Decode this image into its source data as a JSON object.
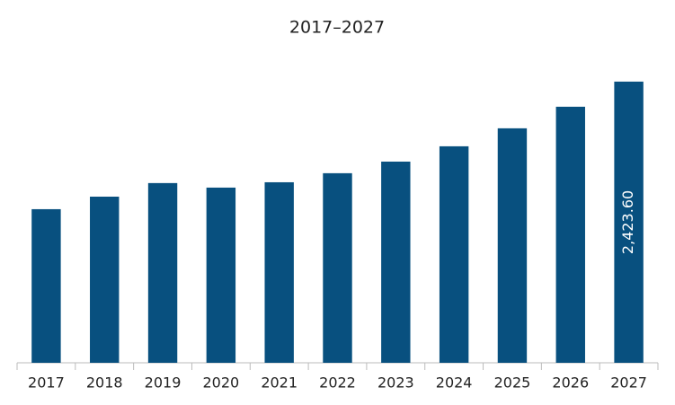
{
  "chart_data": {
    "type": "bar",
    "title": "2017–2027",
    "categories": [
      "2017",
      "2018",
      "2019",
      "2020",
      "2021",
      "2022",
      "2023",
      "2024",
      "2025",
      "2026",
      "2027"
    ],
    "values": [
      1324,
      1432,
      1549,
      1510,
      1556,
      1634,
      1734,
      1866,
      2021,
      2207,
      2423.6
    ],
    "value_labels": [
      null,
      null,
      null,
      null,
      null,
      null,
      null,
      null,
      null,
      null,
      "2,423.60"
    ],
    "color": "#08507f",
    "ylim": [
      0,
      2500
    ]
  }
}
